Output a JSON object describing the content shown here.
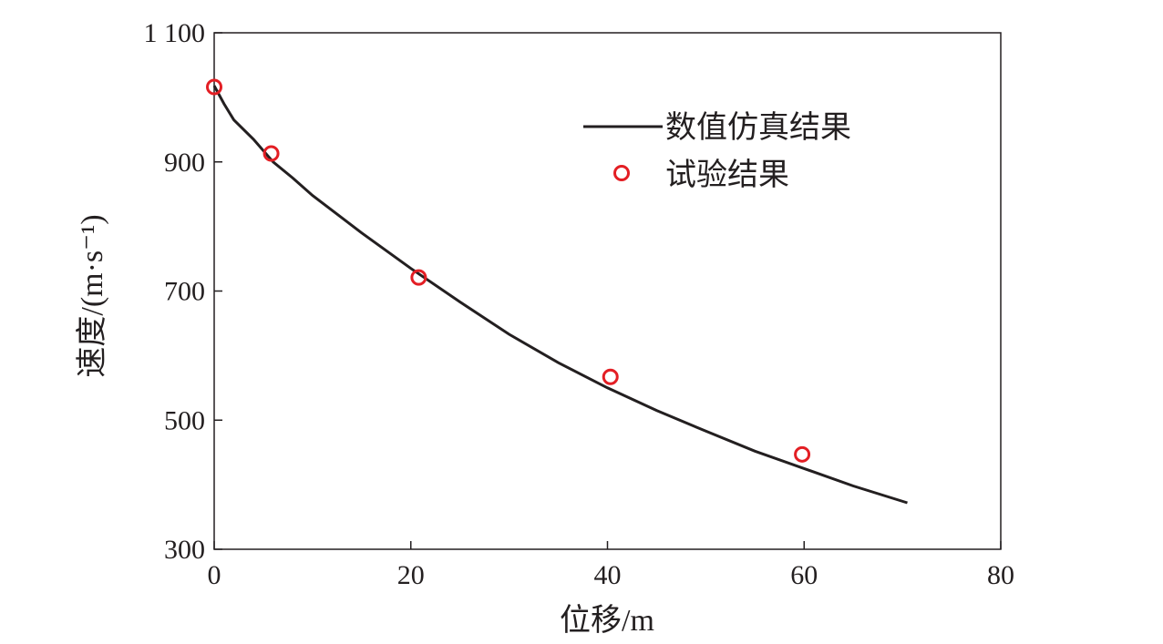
{
  "chart_data": {
    "type": "scatter",
    "title": "",
    "xlabel": "位移/m",
    "ylabel": "速度/(m·s⁻¹)",
    "xlim": [
      0,
      80
    ],
    "ylim": [
      300,
      1100
    ],
    "x_ticks": [
      0,
      20,
      40,
      60,
      80
    ],
    "y_ticks": [
      300,
      500,
      700,
      900,
      1100
    ],
    "x_tick_labels": [
      "0",
      "20",
      "40",
      "60",
      "80"
    ],
    "y_tick_labels": [
      "300",
      "500",
      "700",
      "900",
      "1 100"
    ],
    "grid": false,
    "legend_position": "top-right",
    "series": [
      {
        "name": "数值仿真结果",
        "kind": "line",
        "color": "#231f20",
        "x": [
          0,
          1,
          2,
          4,
          6,
          8,
          10,
          15,
          20,
          25,
          30,
          35,
          40,
          45,
          50,
          55,
          60,
          65,
          70.5
        ],
        "y": [
          1018,
          990,
          965,
          935,
          900,
          875,
          848,
          790,
          735,
          683,
          633,
          589,
          550,
          515,
          483,
          452,
          425,
          398,
          372
        ]
      },
      {
        "name": "试验结果",
        "kind": "scatter",
        "color": "#e31e24",
        "x": [
          0,
          5.8,
          20.8,
          40.3,
          59.8
        ],
        "y": [
          1016,
          913,
          721,
          567,
          447
        ]
      }
    ]
  }
}
